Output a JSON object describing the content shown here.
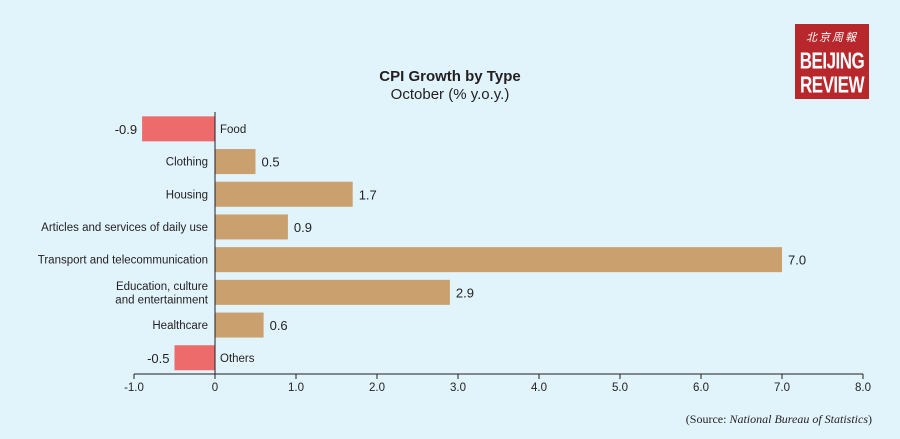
{
  "header": {
    "title": "CPI Growth by Type",
    "subtitle": "October (% y.o.y.)"
  },
  "logo": {
    "chinese": "北京周報",
    "line1": "BEIJING",
    "line2": "REVIEW",
    "color": "#b8272c"
  },
  "source": {
    "prefix": "(Source: ",
    "name": "National Bureau of Statistics",
    "suffix": ")"
  },
  "colors": {
    "positive": "#c9a06e",
    "negative": "#ed6b6b",
    "background": "#e1f3fb",
    "text": "#231f20"
  },
  "chart_data": {
    "type": "bar",
    "orientation": "horizontal",
    "title": "CPI Growth by Type",
    "subtitle": "October (% y.o.y.)",
    "categories": [
      [
        "Food"
      ],
      [
        "Clothing"
      ],
      [
        "Housing"
      ],
      [
        "Articles and services of daily use"
      ],
      [
        "Transport and telecommunication"
      ],
      [
        "Education, culture",
        "and entertainment"
      ],
      [
        "Healthcare"
      ],
      [
        "Others"
      ]
    ],
    "values": [
      -0.9,
      0.5,
      1.7,
      0.9,
      7.0,
      2.9,
      0.6,
      -0.5
    ],
    "value_labels": [
      "-0.9",
      "0.5",
      "1.7",
      "0.9",
      "7.0",
      "2.9",
      "0.6",
      "-0.5"
    ],
    "xlim": [
      -1.0,
      8.0
    ],
    "ticks": [
      -1,
      0,
      1,
      2,
      3,
      4,
      5,
      6,
      7,
      8
    ],
    "tick_labels": [
      "-1.0",
      "0",
      "1.0",
      "2.0",
      "3.0",
      "4.0",
      "5.0",
      "6.0",
      "7.0",
      "8.0"
    ],
    "grid": false,
    "legend": "none"
  }
}
